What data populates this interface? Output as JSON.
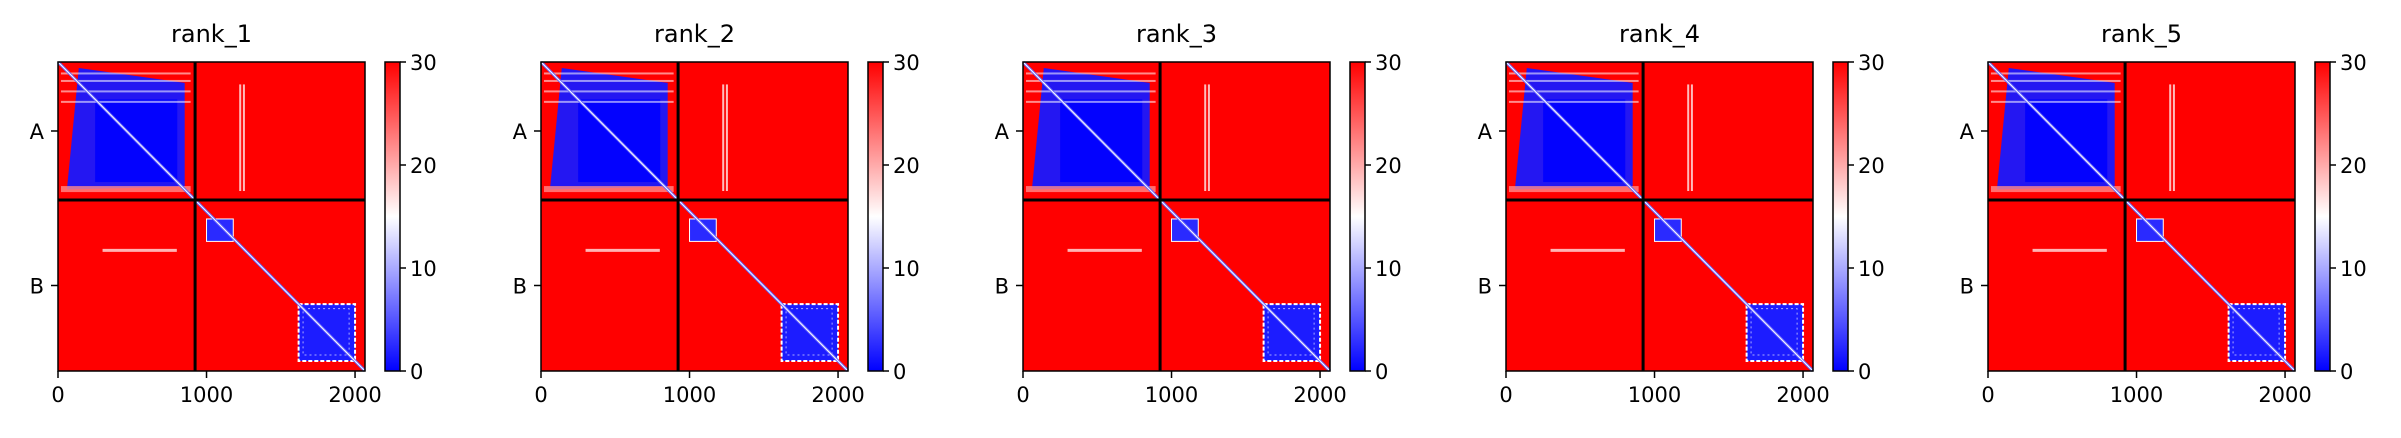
{
  "figure": {
    "colors": {
      "low": "#0000ff",
      "mid": "#ffffff",
      "high": "#ff0000",
      "frame": "#000000"
    }
  },
  "chart_data": [
    {
      "type": "heatmap",
      "title": "rank_1",
      "x_ticks": [
        0,
        1000,
        2000
      ],
      "xlim": [
        0,
        2067
      ],
      "y_ticks": [
        "A",
        "B"
      ],
      "chain_boundary": 923,
      "colorbar": {
        "ticks": [
          0,
          10,
          20,
          30
        ],
        "range": [
          0,
          30
        ],
        "colormap": "bwr"
      },
      "grid": false
    },
    {
      "type": "heatmap",
      "title": "rank_2",
      "x_ticks": [
        0,
        1000,
        2000
      ],
      "xlim": [
        0,
        2067
      ],
      "y_ticks": [
        "A",
        "B"
      ],
      "chain_boundary": 923,
      "colorbar": {
        "ticks": [
          0,
          10,
          20,
          30
        ],
        "range": [
          0,
          30
        ],
        "colormap": "bwr"
      },
      "grid": false
    },
    {
      "type": "heatmap",
      "title": "rank_3",
      "x_ticks": [
        0,
        1000,
        2000
      ],
      "xlim": [
        0,
        2067
      ],
      "y_ticks": [
        "A",
        "B"
      ],
      "chain_boundary": 923,
      "colorbar": {
        "ticks": [
          0,
          10,
          20,
          30
        ],
        "range": [
          0,
          30
        ],
        "colormap": "bwr"
      },
      "grid": false
    },
    {
      "type": "heatmap",
      "title": "rank_4",
      "x_ticks": [
        0,
        1000,
        2000
      ],
      "xlim": [
        0,
        2067
      ],
      "y_ticks": [
        "A",
        "B"
      ],
      "chain_boundary": 923,
      "colorbar": {
        "ticks": [
          0,
          10,
          20,
          30
        ],
        "range": [
          0,
          30
        ],
        "colormap": "bwr"
      },
      "grid": false
    },
    {
      "type": "heatmap",
      "title": "rank_5",
      "x_ticks": [
        0,
        1000,
        2000
      ],
      "xlim": [
        0,
        2067
      ],
      "y_ticks": [
        "A",
        "B"
      ],
      "chain_boundary": 923,
      "colorbar": {
        "ticks": [
          0,
          10,
          20,
          30
        ],
        "range": [
          0,
          30
        ],
        "colormap": "bwr"
      },
      "grid": false
    }
  ]
}
